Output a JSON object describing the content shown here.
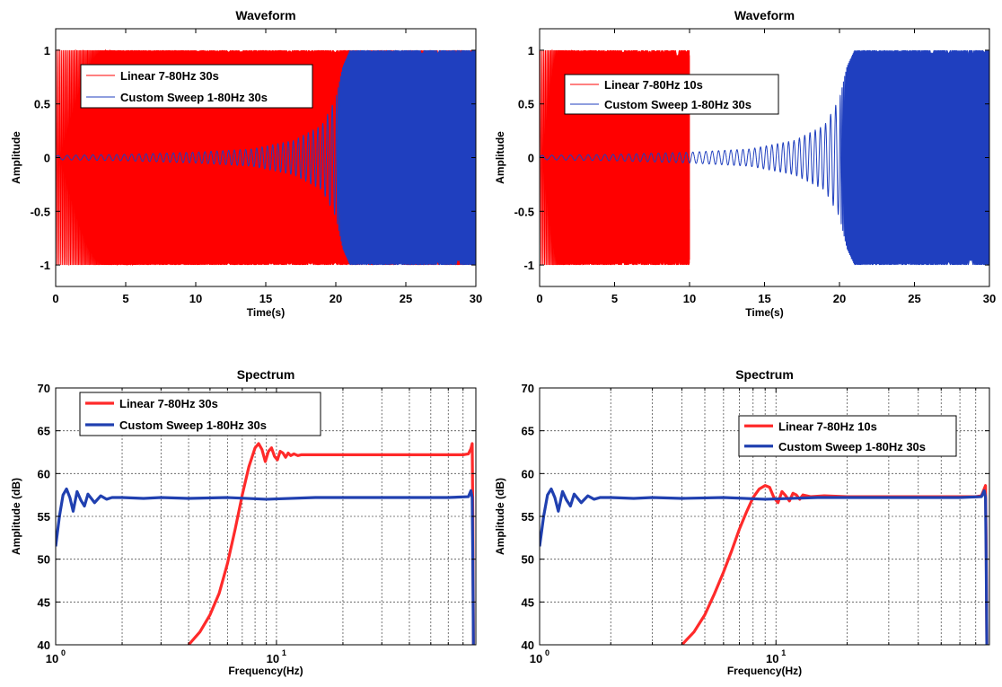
{
  "chart_data": [
    {
      "id": "p1",
      "type": "line",
      "title": "Waveform",
      "xlabel": "Time(s)",
      "ylabel": "Amplitude",
      "xlim": [
        0,
        30
      ],
      "ylim": [
        -1.2,
        1.2
      ],
      "xscale": "linear",
      "grid": false,
      "legend_position": "top-left",
      "x_ticks": [
        0,
        5,
        10,
        15,
        20,
        25,
        30
      ],
      "y_ticks": [
        -1,
        -0.5,
        0,
        0.5,
        1
      ],
      "x_tick_labels": [
        "0",
        "5",
        "10",
        "15",
        "20",
        "25",
        "30"
      ],
      "y_tick_labels": [
        "-1",
        "-0.5",
        "0",
        "0.5",
        "1"
      ],
      "series": [
        {
          "name": "Linear 7-80Hz 30s",
          "color": "#ff0000",
          "signal": "linear_sweep",
          "f_start_hz": 7,
          "f_end_hz": 80,
          "duration_s": 30,
          "amplitude": 1
        },
        {
          "name": "Custom Sweep 1-80Hz 30s",
          "color": "#1f3fbf",
          "signal": "custom_sweep",
          "f_start_hz": 1,
          "f_end_hz": 80,
          "duration_s": 30,
          "envelope": {
            "t": [
              0,
              5,
              10,
              14,
              17,
              19,
              20,
              20.5,
              21,
              30
            ],
            "amp": [
              0.02,
              0.03,
              0.05,
              0.08,
              0.16,
              0.3,
              0.55,
              0.85,
              1,
              1
            ]
          }
        }
      ]
    },
    {
      "id": "p2",
      "type": "line",
      "title": "Waveform",
      "xlabel": "Time(s)",
      "ylabel": "Amplitude",
      "xlim": [
        0,
        30
      ],
      "ylim": [
        -1.2,
        1.2
      ],
      "xscale": "linear",
      "grid": false,
      "legend_position": "top-left",
      "x_ticks": [
        0,
        5,
        10,
        15,
        20,
        25,
        30
      ],
      "y_ticks": [
        -1,
        -0.5,
        0,
        0.5,
        1
      ],
      "x_tick_labels": [
        "0",
        "5",
        "10",
        "15",
        "20",
        "25",
        "30"
      ],
      "y_tick_labels": [
        "-1",
        "-0.5",
        "0",
        "0.5",
        "1"
      ],
      "series": [
        {
          "name": "Linear 7-80Hz 10s",
          "color": "#ff0000",
          "signal": "linear_sweep",
          "f_start_hz": 7,
          "f_end_hz": 80,
          "duration_s": 10,
          "amplitude": 1
        },
        {
          "name": "Custom Sweep 1-80Hz 30s",
          "color": "#1f3fbf",
          "signal": "custom_sweep",
          "f_start_hz": 1,
          "f_end_hz": 80,
          "duration_s": 30,
          "envelope": {
            "t": [
              0,
              5,
              10,
              14,
              17,
              19,
              20,
              20.5,
              21,
              30
            ],
            "amp": [
              0.02,
              0.03,
              0.05,
              0.08,
              0.16,
              0.3,
              0.55,
              0.85,
              1,
              1
            ]
          }
        }
      ]
    },
    {
      "id": "p3",
      "type": "line",
      "title": "Spectrum",
      "xlabel": "Frequency(Hz)",
      "ylabel": "Amplitude (dB)",
      "xlim": [
        1,
        80
      ],
      "ylim": [
        40,
        70
      ],
      "xscale": "log",
      "grid": true,
      "legend_position": "top-left",
      "x_ticks": [
        1,
        10
      ],
      "y_ticks": [
        40,
        45,
        50,
        55,
        60,
        65,
        70
      ],
      "x_tick_labels": [
        {
          "base": "10",
          "exp": "0"
        },
        {
          "base": "10",
          "exp": "1"
        }
      ],
      "y_tick_labels": [
        "40",
        "45",
        "50",
        "55",
        "60",
        "65",
        "70"
      ],
      "series": [
        {
          "name": "Linear 7-80Hz 30s",
          "color": "#ff2a2a",
          "x": [
            4.0,
            4.5,
            5.0,
            5.5,
            6.0,
            6.5,
            7.0,
            7.5,
            8.0,
            8.3,
            8.6,
            8.9,
            9.2,
            9.5,
            9.8,
            10.1,
            10.4,
            10.7,
            11.0,
            11.3,
            11.6,
            12.0,
            12.5,
            13.0,
            14.0,
            16.0,
            20.0,
            30.0,
            50.0,
            70.0,
            74.0,
            76.0,
            77.0,
            77.5,
            78.0
          ],
          "y": [
            40,
            41.5,
            43.5,
            46,
            49.5,
            53.5,
            57.5,
            60.8,
            63.0,
            63.5,
            62.8,
            61.4,
            62.6,
            63.0,
            62.0,
            61.6,
            62.6,
            62.4,
            61.9,
            62.4,
            62.1,
            62.3,
            62.1,
            62.2,
            62.2,
            62.2,
            62.2,
            62.2,
            62.2,
            62.2,
            62.3,
            62.9,
            63.5,
            55,
            40
          ]
        },
        {
          "name": "Custom Sweep 1-80Hz 30s",
          "color": "#2040b0",
          "x": [
            1.0,
            1.04,
            1.08,
            1.12,
            1.16,
            1.2,
            1.25,
            1.3,
            1.35,
            1.4,
            1.45,
            1.5,
            1.6,
            1.7,
            1.8,
            2.0,
            2.5,
            3.0,
            4.0,
            6.0,
            9.0,
            15.0,
            30.0,
            60.0,
            74.0,
            76.0,
            77.0,
            77.5,
            78.0
          ],
          "y": [
            51.5,
            55.0,
            57.5,
            58.2,
            57.2,
            55.6,
            57.9,
            56.9,
            56.2,
            57.6,
            57.1,
            56.6,
            57.4,
            57.0,
            57.2,
            57.2,
            57.1,
            57.2,
            57.1,
            57.2,
            57.0,
            57.2,
            57.2,
            57.2,
            57.3,
            58.0,
            57.2,
            50,
            40
          ]
        }
      ]
    },
    {
      "id": "p4",
      "type": "line",
      "title": "Spectrum",
      "xlabel": "Frequency(Hz)",
      "ylabel": "Amplitude (dB)",
      "xlim": [
        1,
        80
      ],
      "ylim": [
        40,
        70
      ],
      "xscale": "log",
      "grid": true,
      "legend_position": "top-right",
      "x_ticks": [
        1,
        10
      ],
      "y_ticks": [
        40,
        45,
        50,
        55,
        60,
        65,
        70
      ],
      "x_tick_labels": [
        {
          "base": "10",
          "exp": "0"
        },
        {
          "base": "10",
          "exp": "1"
        }
      ],
      "y_tick_labels": [
        "40",
        "45",
        "50",
        "55",
        "60",
        "65",
        "70"
      ],
      "series": [
        {
          "name": "Linear 7-80Hz 10s",
          "color": "#ff2a2a",
          "x": [
            4.0,
            4.5,
            5.0,
            5.5,
            6.0,
            6.5,
            7.0,
            7.5,
            8.0,
            8.5,
            9.0,
            9.4,
            9.8,
            10.2,
            10.6,
            11.0,
            11.4,
            11.8,
            12.2,
            12.6,
            13.0,
            14.0,
            16.0,
            20.0,
            30.0,
            50.0,
            70.0,
            74.0,
            76.0,
            77.0,
            77.5,
            78.0
          ],
          "y": [
            40,
            41.5,
            43.5,
            46,
            48.5,
            51,
            53.5,
            55.5,
            57.2,
            58.2,
            58.6,
            58.4,
            57.2,
            56.6,
            57.9,
            57.4,
            56.8,
            57.7,
            57.5,
            57.0,
            57.5,
            57.3,
            57.4,
            57.3,
            57.3,
            57.3,
            57.3,
            57.4,
            58.2,
            58.6,
            52,
            40
          ]
        },
        {
          "name": "Custom Sweep 1-80Hz 30s",
          "color": "#2040b0",
          "x": [
            1.0,
            1.04,
            1.08,
            1.12,
            1.16,
            1.2,
            1.25,
            1.3,
            1.35,
            1.4,
            1.45,
            1.5,
            1.6,
            1.7,
            1.8,
            2.0,
            2.5,
            3.0,
            4.0,
            6.0,
            9.0,
            15.0,
            30.0,
            60.0,
            74.0,
            76.0,
            77.0,
            77.5,
            78.0
          ],
          "y": [
            51.5,
            55.0,
            57.5,
            58.2,
            57.2,
            55.6,
            57.9,
            56.9,
            56.2,
            57.6,
            57.1,
            56.6,
            57.4,
            57.0,
            57.2,
            57.2,
            57.1,
            57.2,
            57.1,
            57.2,
            57.0,
            57.2,
            57.2,
            57.2,
            57.3,
            58.0,
            57.2,
            50,
            40
          ]
        }
      ]
    }
  ]
}
